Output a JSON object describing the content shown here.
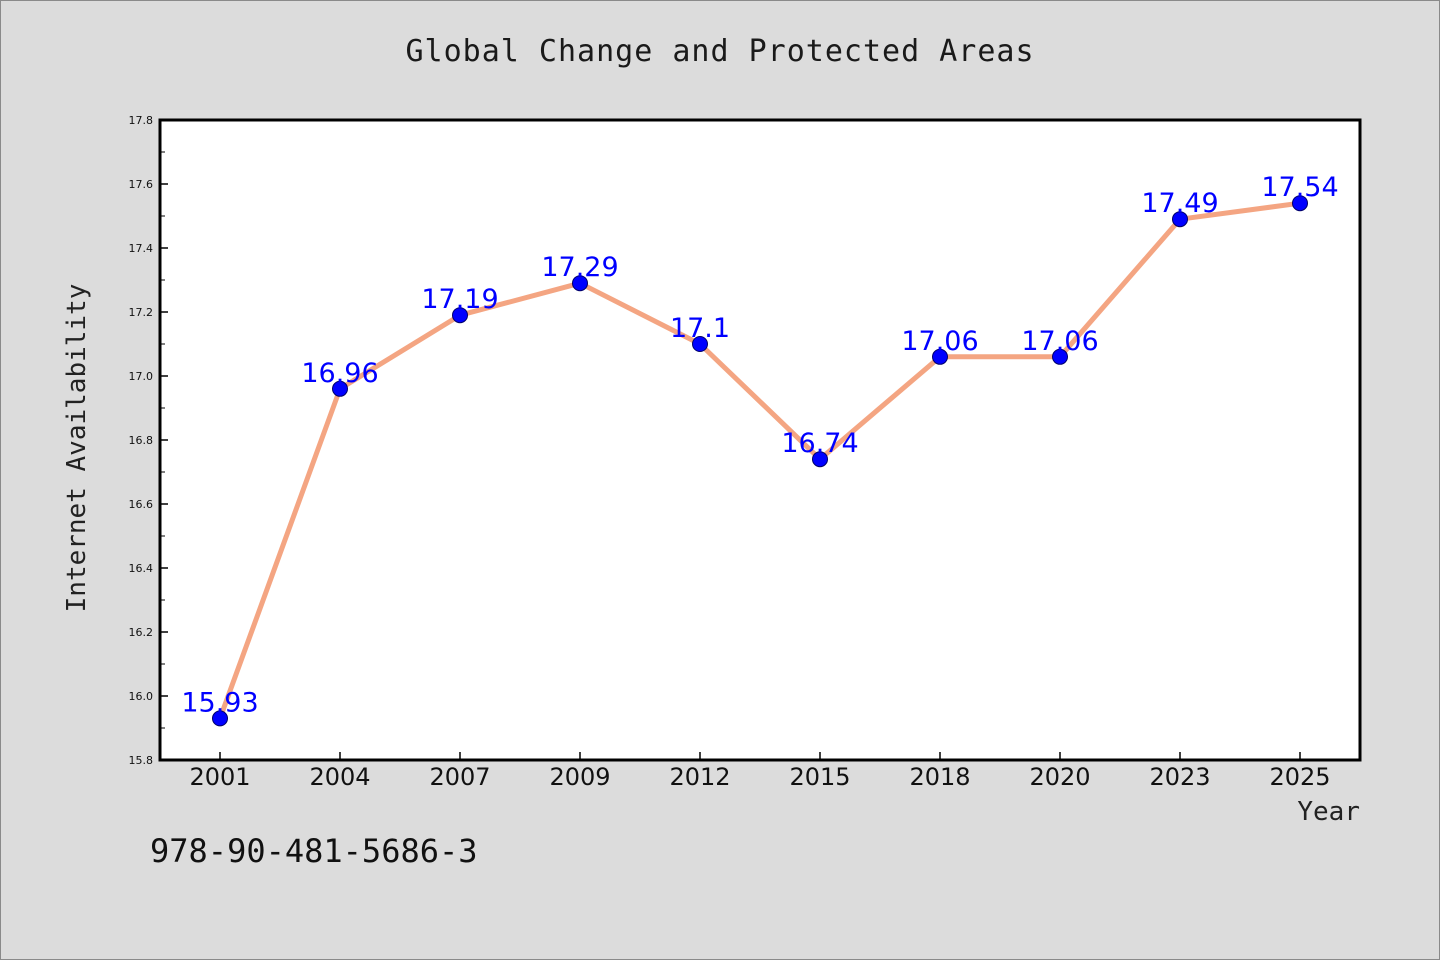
{
  "chart_data": {
    "type": "line",
    "title": "Global Change and Protected Areas",
    "xlabel": "Year",
    "ylabel": "Internet Availability",
    "categories": [
      "2001",
      "2004",
      "2007",
      "2009",
      "2012",
      "2015",
      "2018",
      "2020",
      "2023",
      "2025"
    ],
    "series": [
      {
        "values": [
          15.93,
          16.96,
          17.19,
          17.29,
          17.1,
          16.74,
          17.06,
          17.06,
          17.49,
          17.54
        ],
        "labels": [
          "15.93",
          "16.96",
          "17.19",
          "17.29",
          "17.1",
          "16.74",
          "17.06",
          "17.06",
          "17.49",
          "17.54"
        ]
      }
    ],
    "ylim": [
      15.8,
      17.8
    ],
    "yticks": [
      "15.8",
      "16.0",
      "16.2",
      "16.4",
      "16.6",
      "16.8",
      "17.0",
      "17.2",
      "17.4",
      "17.6",
      "17.8"
    ],
    "grid": false,
    "line_color": "#f4a582",
    "marker_color": "#0000ff",
    "label_color": "#0000ff"
  },
  "footer": {
    "isbn": "978-90-481-5686-3"
  }
}
